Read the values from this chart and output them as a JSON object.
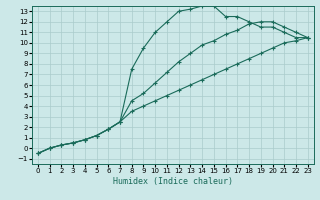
{
  "title": "",
  "xlabel": "Humidex (Indice chaleur)",
  "bg_color": "#cce8e8",
  "grid_color": "#aacccc",
  "line_color": "#1a6b5a",
  "xlim": [
    -0.5,
    23.5
  ],
  "ylim": [
    -1.5,
    13.5
  ],
  "xticks": [
    0,
    1,
    2,
    3,
    4,
    5,
    6,
    7,
    8,
    9,
    10,
    11,
    12,
    13,
    14,
    15,
    16,
    17,
    18,
    19,
    20,
    21,
    22,
    23
  ],
  "yticks": [
    -1,
    0,
    1,
    2,
    3,
    4,
    5,
    6,
    7,
    8,
    9,
    10,
    11,
    12,
    13
  ],
  "line1_x": [
    0,
    1,
    2,
    3,
    4,
    5,
    6,
    7,
    8,
    9,
    10,
    11,
    12,
    13,
    14,
    15,
    16,
    17,
    18,
    19,
    20,
    21,
    22,
    23
  ],
  "line1_y": [
    -0.5,
    0.0,
    0.3,
    0.5,
    0.8,
    1.2,
    1.8,
    2.5,
    7.5,
    9.5,
    11.0,
    12.0,
    13.0,
    13.2,
    13.5,
    13.5,
    12.5,
    12.5,
    12.0,
    11.5,
    11.5,
    11.0,
    10.5,
    10.5
  ],
  "line2_x": [
    0,
    1,
    2,
    3,
    4,
    5,
    6,
    7,
    8,
    9,
    10,
    11,
    12,
    13,
    14,
    15,
    16,
    17,
    18,
    19,
    20,
    21,
    22,
    23
  ],
  "line2_y": [
    -0.5,
    0.0,
    0.3,
    0.5,
    0.8,
    1.2,
    1.8,
    2.5,
    4.5,
    5.2,
    6.2,
    7.2,
    8.2,
    9.0,
    9.8,
    10.2,
    10.8,
    11.2,
    11.8,
    12.0,
    12.0,
    11.5,
    11.0,
    10.5
  ],
  "line3_x": [
    0,
    1,
    2,
    3,
    4,
    5,
    6,
    7,
    8,
    9,
    10,
    11,
    12,
    13,
    14,
    15,
    16,
    17,
    18,
    19,
    20,
    21,
    22,
    23
  ],
  "line3_y": [
    -0.5,
    0.0,
    0.3,
    0.5,
    0.8,
    1.2,
    1.8,
    2.5,
    3.5,
    4.0,
    4.5,
    5.0,
    5.5,
    6.0,
    6.5,
    7.0,
    7.5,
    8.0,
    8.5,
    9.0,
    9.5,
    10.0,
    10.2,
    10.5
  ],
  "tick_fontsize": 5,
  "xlabel_fontsize": 6,
  "marker_size": 2.5,
  "linewidth": 0.8
}
